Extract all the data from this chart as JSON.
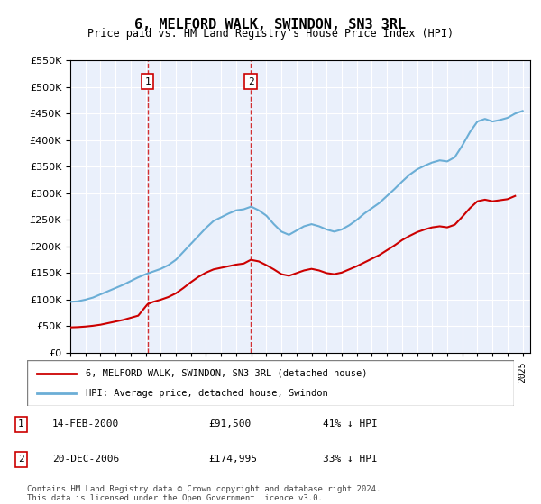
{
  "title": "6, MELFORD WALK, SWINDON, SN3 3RL",
  "subtitle": "Price paid vs. HM Land Registry's House Price Index (HPI)",
  "legend_line1": "6, MELFORD WALK, SWINDON, SN3 3RL (detached house)",
  "legend_line2": "HPI: Average price, detached house, Swindon",
  "footer": "Contains HM Land Registry data © Crown copyright and database right 2024.\nThis data is licensed under the Open Government Licence v3.0.",
  "purchases": [
    {
      "label": "1",
      "date": "14-FEB-2000",
      "price": 91500,
      "hpi_diff": "41% ↓ HPI",
      "year": 2000.12
    },
    {
      "label": "2",
      "date": "20-DEC-2006",
      "price": 174995,
      "hpi_diff": "33% ↓ HPI",
      "year": 2006.97
    }
  ],
  "hpi_color": "#6baed6",
  "price_color": "#cc0000",
  "purchase_marker_color": "#cc0000",
  "vline_color": "#cc0000",
  "background_color": "#eaf0fb",
  "ylim": [
    0,
    550000
  ],
  "xlim_start": 1995,
  "xlim_end": 2025.5,
  "hpi_data": {
    "years": [
      1995,
      1995.5,
      1996,
      1996.5,
      1997,
      1997.5,
      1998,
      1998.5,
      1999,
      1999.5,
      2000,
      2000.5,
      2001,
      2001.5,
      2002,
      2002.5,
      2003,
      2003.5,
      2004,
      2004.5,
      2005,
      2005.5,
      2006,
      2006.5,
      2007,
      2007.5,
      2008,
      2008.5,
      2009,
      2009.5,
      2010,
      2010.5,
      2011,
      2011.5,
      2012,
      2012.5,
      2013,
      2013.5,
      2014,
      2014.5,
      2015,
      2015.5,
      2016,
      2016.5,
      2017,
      2017.5,
      2018,
      2018.5,
      2019,
      2019.5,
      2020,
      2020.5,
      2021,
      2021.5,
      2022,
      2022.5,
      2023,
      2023.5,
      2024,
      2024.5,
      2025
    ],
    "values": [
      96000,
      97000,
      100000,
      104000,
      110000,
      116000,
      122000,
      128000,
      135000,
      142000,
      148000,
      153000,
      158000,
      165000,
      175000,
      190000,
      205000,
      220000,
      235000,
      248000,
      255000,
      262000,
      268000,
      270000,
      275000,
      268000,
      258000,
      242000,
      228000,
      222000,
      230000,
      238000,
      242000,
      238000,
      232000,
      228000,
      232000,
      240000,
      250000,
      262000,
      272000,
      282000,
      295000,
      308000,
      322000,
      335000,
      345000,
      352000,
      358000,
      362000,
      360000,
      368000,
      390000,
      415000,
      435000,
      440000,
      435000,
      438000,
      442000,
      450000,
      455000
    ]
  },
  "price_data": {
    "years": [
      1995,
      1995.5,
      1996,
      1996.5,
      1997,
      1997.5,
      1998,
      1998.5,
      1999,
      1999.5,
      2000.12,
      2000.5,
      2001,
      2001.5,
      2002,
      2002.5,
      2003,
      2003.5,
      2004,
      2004.5,
      2005,
      2005.5,
      2006,
      2006.5,
      2006.97,
      2007.5,
      2008,
      2008.5,
      2009,
      2009.5,
      2010,
      2010.5,
      2011,
      2011.5,
      2012,
      2012.5,
      2013,
      2013.5,
      2014,
      2014.5,
      2015,
      2015.5,
      2016,
      2016.5,
      2017,
      2017.5,
      2018,
      2018.5,
      2019,
      2019.5,
      2020,
      2020.5,
      2021,
      2021.5,
      2022,
      2022.5,
      2023,
      2023.5,
      2024,
      2024.5
    ],
    "values": [
      48000,
      48500,
      49500,
      51000,
      53000,
      56000,
      59000,
      62000,
      66000,
      70000,
      91500,
      96000,
      100000,
      105000,
      112000,
      122000,
      133000,
      143000,
      151000,
      157000,
      160000,
      163000,
      166000,
      168000,
      174995,
      172000,
      165000,
      157000,
      148000,
      145000,
      150000,
      155000,
      158000,
      155000,
      150000,
      148000,
      151000,
      157000,
      163000,
      170000,
      177000,
      184000,
      193000,
      202000,
      212000,
      220000,
      227000,
      232000,
      236000,
      238000,
      236000,
      241000,
      256000,
      272000,
      285000,
      288000,
      285000,
      287000,
      289000,
      295000
    ]
  }
}
